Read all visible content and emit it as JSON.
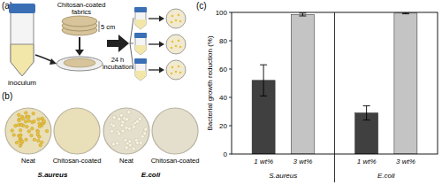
{
  "figure": {
    "a": {
      "label": "(a)",
      "fabric_label": [
        "Chitosan-coated",
        "fabrics"
      ],
      "size_label": "5 cm",
      "tube_label": "inoculum",
      "step_label": [
        "24 h",
        "incubation"
      ]
    },
    "b": {
      "label": "(b)",
      "groups": [
        {
          "name": "S.aureus",
          "dishes": [
            "Neat",
            "Chitosan-coated"
          ]
        },
        {
          "name": "E.coli",
          "dishes": [
            "Neat",
            "Chitosan-coated"
          ]
        }
      ]
    },
    "c": {
      "label": "(c)"
    }
  },
  "chart_data": {
    "type": "bar",
    "y_label": "Bacterial growth reduction (%)",
    "categories": [
      "S.aureus",
      "E.coli"
    ],
    "series": [
      {
        "name": "1 wt%",
        "color": "#404040",
        "values": [
          52,
          29
        ],
        "errors": [
          11,
          5
        ]
      },
      {
        "name": "3 wt%",
        "color": "#c4c4c4",
        "values": [
          98.5,
          99.5
        ],
        "errors": [
          1,
          0.5
        ]
      }
    ],
    "ylim": [
      0,
      100
    ],
    "yticks": [
      0,
      20,
      40,
      60,
      80,
      100
    ],
    "grid": false
  }
}
